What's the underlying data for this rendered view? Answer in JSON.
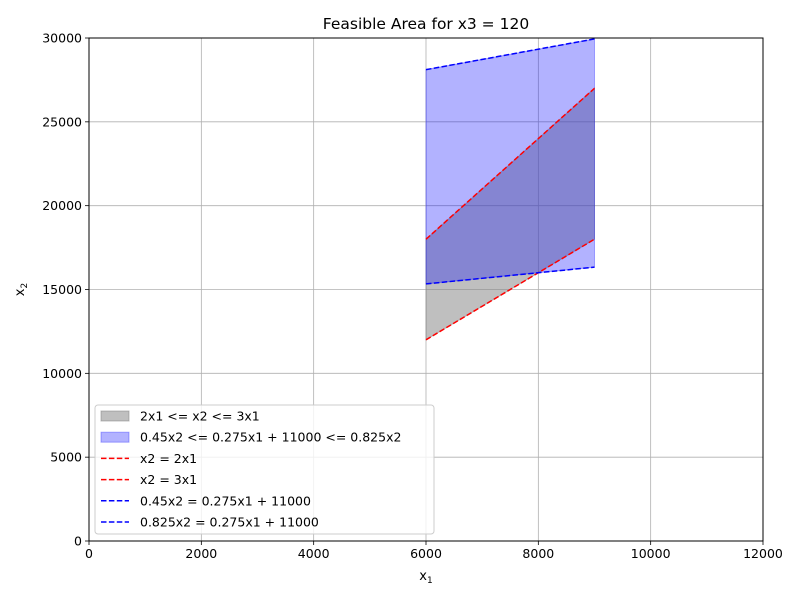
{
  "chart_data": {
    "type": "area",
    "title": "Feasible Area for x3 = 120",
    "xlabel": "x",
    "xlabel_sub": "1",
    "ylabel": "x",
    "ylabel_sub": "2",
    "xlim": [
      0,
      12000
    ],
    "ylim": [
      0,
      30000
    ],
    "x_ticks": [
      0,
      2000,
      4000,
      6000,
      8000,
      10000,
      12000
    ],
    "y_ticks": [
      0,
      5000,
      10000,
      15000,
      20000,
      25000,
      30000
    ],
    "grid": true,
    "legend_position": "lower-left",
    "areas": [
      {
        "name": "2x1 <= x2 <= 3x1",
        "color": "#808080",
        "opacity": 0.5,
        "x": [
          6000,
          9000
        ],
        "lower": [
          12000,
          18000
        ],
        "upper": [
          18000,
          27000
        ]
      },
      {
        "name": "0.45x2 <= 0.275x1 + 11000 <= 0.825x2",
        "color": "#0000ff",
        "opacity": 0.3,
        "x": [
          6000,
          9000
        ],
        "lower": [
          15333.3,
          16333.3
        ],
        "upper": [
          28111.1,
          29944.4
        ]
      }
    ],
    "series": [
      {
        "name": "x2 = 2x1",
        "color": "#ff0000",
        "style": "dashed",
        "x": [
          6000,
          9000
        ],
        "y": [
          12000,
          18000
        ]
      },
      {
        "name": "x2 = 3x1",
        "color": "#ff0000",
        "style": "dashed",
        "x": [
          6000,
          9000
        ],
        "y": [
          18000,
          27000
        ]
      },
      {
        "name": "0.45x2 = 0.275x1 + 11000",
        "color": "#0000ff",
        "style": "dashed",
        "x": [
          6000,
          9000
        ],
        "y": [
          28111.1,
          29944.4
        ]
      },
      {
        "name": "0.825x2 = 0.275x1 + 11000",
        "color": "#0000ff",
        "style": "dashed",
        "x": [
          6000,
          9000
        ],
        "y": [
          15333.3,
          16333.3
        ]
      }
    ]
  }
}
